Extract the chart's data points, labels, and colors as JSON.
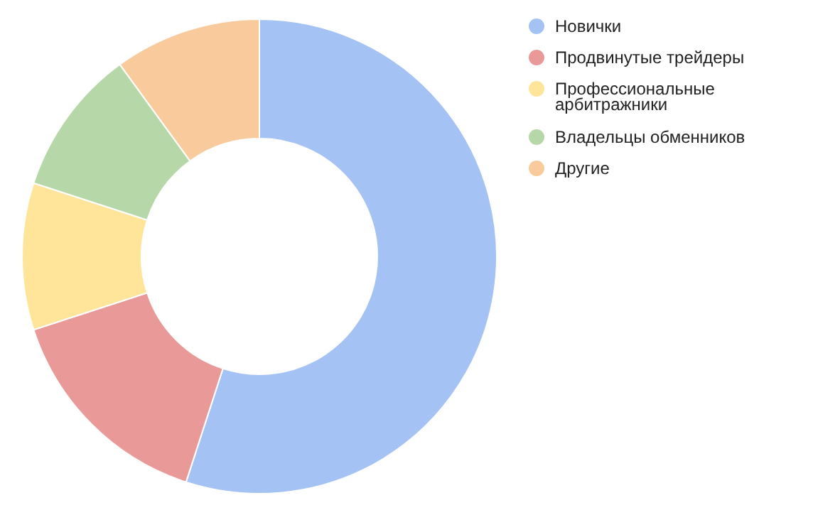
{
  "chart_data": {
    "type": "donut",
    "categories": [
      "Новички",
      "Продвинутые трейдеры",
      "Профессиональные арбитражники",
      "Владельцы обменников",
      "Другие"
    ],
    "values": [
      55,
      15,
      10,
      10,
      10
    ],
    "colors": [
      "#a4c2f4",
      "#ea9999",
      "#ffe599",
      "#b6d7a8",
      "#f9cb9c"
    ],
    "legend": "right"
  }
}
